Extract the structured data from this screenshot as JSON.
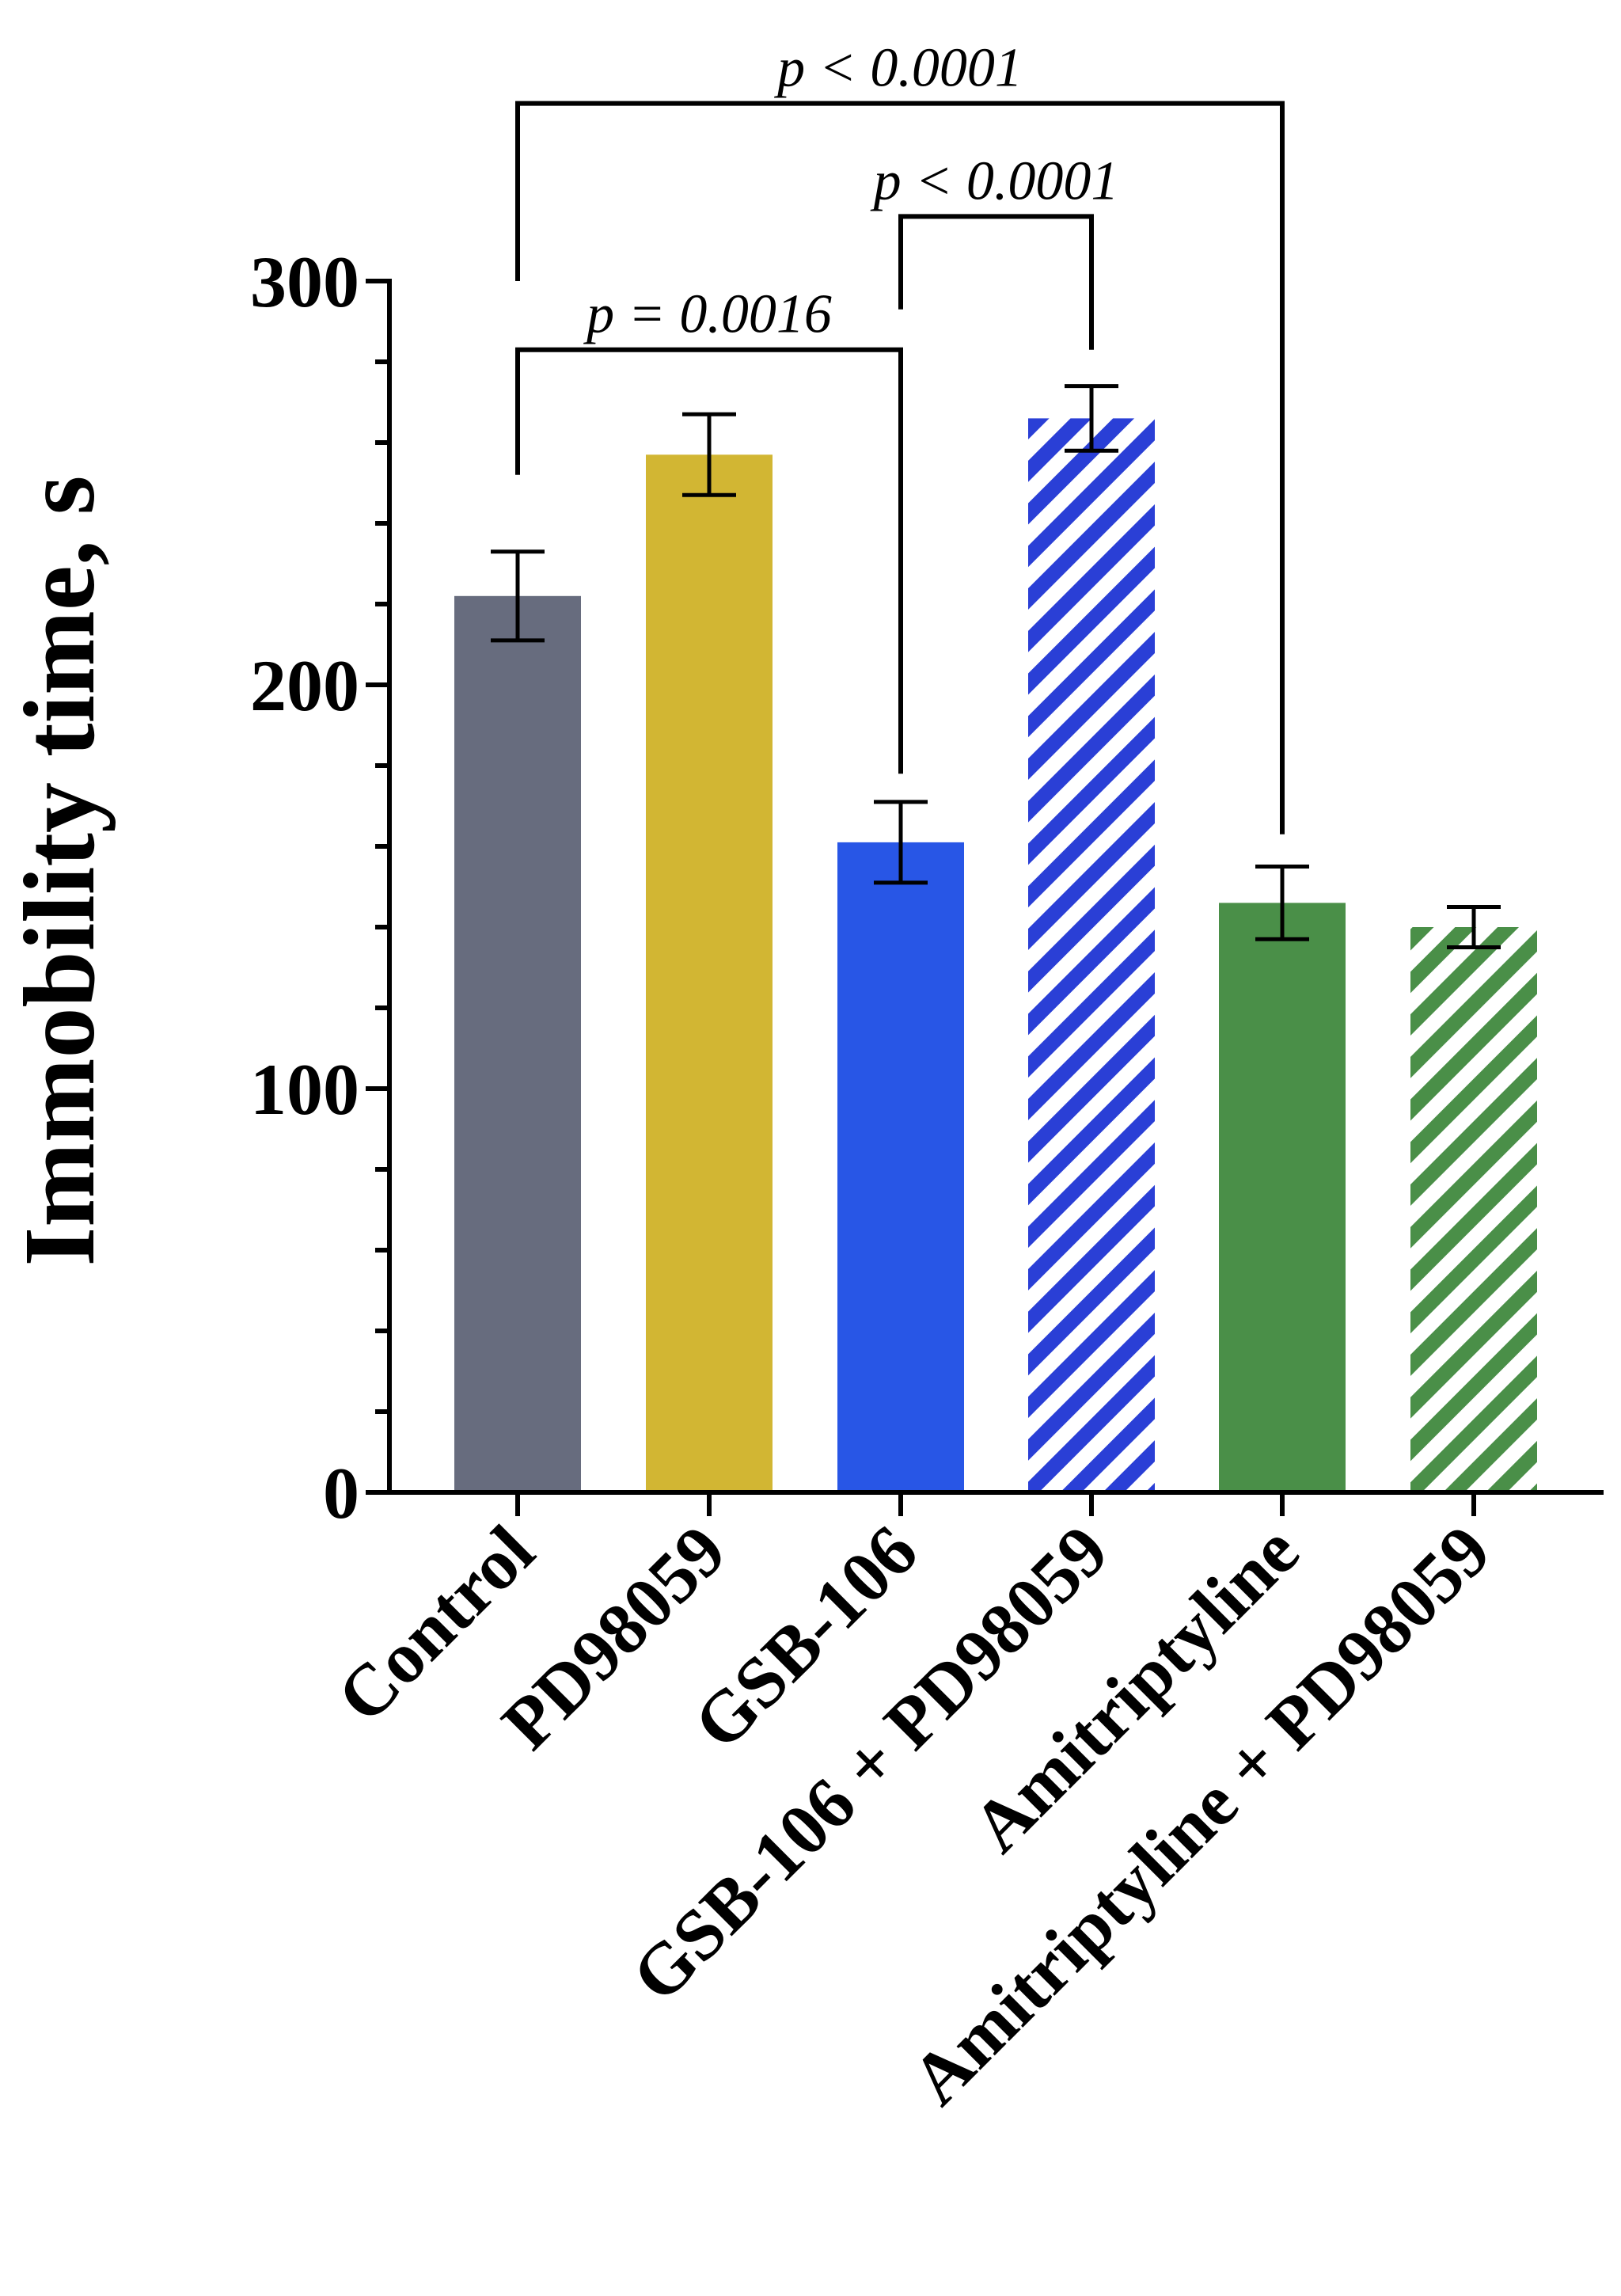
{
  "chart_data": {
    "type": "bar",
    "title": "",
    "xlabel": "",
    "ylabel": "Immobility time, s",
    "ylim": [
      0,
      300
    ],
    "yticks": [
      0,
      100,
      200,
      300
    ],
    "y_minor_step": 20,
    "categories": [
      "Control",
      "PD98059",
      "GSB-106",
      "GSB-106 + PD98059",
      "Amitriptyline",
      "Amitriptyline + PD98059"
    ],
    "values": [
      222,
      257,
      161,
      266,
      146,
      140
    ],
    "errors": [
      11,
      10,
      10,
      8,
      9,
      5
    ],
    "colors": [
      "#676c7e",
      "#d2b633",
      "#2856e6",
      "#2a3fd6",
      "#4a8f48",
      "#4a8f48"
    ],
    "pattern": [
      "solid",
      "solid",
      "solid",
      "hatched",
      "solid",
      "hatched"
    ],
    "annotations": [
      {
        "from": 0,
        "to": 2,
        "label": "p = 0.0016",
        "line_y": 283,
        "start_y": [
          252,
          178
        ]
      },
      {
        "from": 2,
        "to": 3,
        "label": "p < 0.0001",
        "line_y": 316,
        "start_y": [
          293,
          283
        ]
      },
      {
        "from": 0,
        "to": 4,
        "label": "p < 0.0001",
        "line_y": 344,
        "start_y": [
          300,
          163
        ]
      }
    ]
  }
}
